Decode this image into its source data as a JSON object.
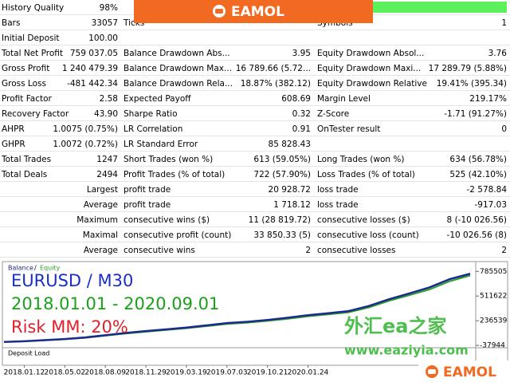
{
  "banner": {
    "brand": "EAMOL"
  },
  "report": {
    "rows": [
      [
        "History Quality",
        "98%",
        null,
        null,
        null,
        null
      ],
      [
        "Bars",
        "33057",
        "Ticks",
        null,
        "Symbols",
        "1"
      ],
      [
        "Initial Deposit",
        "100.00",
        null,
        null,
        null,
        null
      ],
      [
        "Total Net Profit",
        "759 037.05",
        "Balance Drawdown Abs...",
        "3.95",
        "Equity Drawdown Absol...",
        "3.76"
      ],
      [
        "Gross Profit",
        "1 240 479.39",
        "Balance Drawdown Max...",
        "16 789.66 (5.72...",
        "Equity Drawdown Maxi...",
        "17 289.79 (5.88%)"
      ],
      [
        "Gross Loss",
        "-481 442.34",
        "Balance Drawdown Rela...",
        "18.87% (382.12)",
        "Equity Drawdown Relative",
        "19.41% (395.34)"
      ],
      [
        "Profit Factor",
        "2.58",
        "Expected Payoff",
        "608.69",
        "Margin Level",
        "219.17%"
      ],
      [
        "Recovery Factor",
        "43.90",
        "Sharpe Ratio",
        "0.32",
        "Z-Score",
        "-1.71 (91.27%)"
      ],
      [
        "AHPR",
        "1.0075 (0.75%)",
        "LR Correlation",
        "0.91",
        "OnTester result",
        "0"
      ],
      [
        "GHPR",
        "1.0072 (0.72%)",
        "LR Standard Error",
        "85 828.43",
        null,
        null
      ],
      [
        "Total Trades",
        "1247",
        "Short Trades (won %)",
        "613 (59.05%)",
        "Long Trades (won %)",
        "634 (56.78%)"
      ],
      [
        "Total Deals",
        "2494",
        "Profit Trades (% of total)",
        "722 (57.90%)",
        "Loss Trades (% of total)",
        "525 (42.10%)"
      ],
      [
        null,
        "Largest",
        "profit trade",
        "20 928.72",
        "loss trade",
        "-2 578.84"
      ],
      [
        null,
        "Average",
        "profit trade",
        "1 718.12",
        "loss trade",
        "-917.03"
      ],
      [
        null,
        "Maximum",
        "consecutive wins ($)",
        "11 (28 819.72)",
        "consecutive losses ($)",
        "8 (-10 026.56)"
      ],
      [
        null,
        "Maximal",
        "consecutive profit (count)",
        "33 850.33 (5)",
        "consecutive loss (count)",
        "-10 026.56 (8)"
      ],
      [
        null,
        "Average",
        "consecutive wins",
        "2",
        "consecutive losses",
        "2"
      ]
    ]
  },
  "chart_data": {
    "type": "line",
    "legend_separator": "/",
    "title_lines": [
      {
        "text": "EURUSD / M30",
        "color": "#1a2fc8"
      },
      {
        "text": "2018.01.01 - 2020.09.01",
        "color": "#1aa01a"
      },
      {
        "text": "Risk MM: 20%",
        "color": "#e0202a"
      }
    ],
    "subpanel_title": "Deposit Load",
    "watermark": [
      "外汇ea之家",
      "www.eaziyia.com"
    ],
    "ylim": [
      -55000,
      850000
    ],
    "yticks": [
      785505,
      511622,
      236539,
      -37944
    ],
    "categories": [
      null,
      "2018.01.12",
      null,
      "2018.05.02",
      null,
      "2018.08.09",
      null,
      "2018.11.29",
      null,
      "2019.03.19",
      null,
      "2019.07.03",
      null,
      "2019.10.21",
      null,
      "2020.01.24",
      null,
      null,
      null,
      null,
      null,
      null,
      null,
      null
    ],
    "series": [
      {
        "name": "Equity",
        "color": "#2ca02c",
        "values": [
          100,
          7000,
          18000,
          30000,
          46000,
          70000,
          94000,
          114000,
          133000,
          152000,
          176000,
          200000,
          214000,
          234000,
          258000,
          285000,
          306000,
          330000,
          384000,
          458000,
          520000,
          585000,
          676000,
          740000
        ]
      },
      {
        "name": "Balance",
        "color": "#1c2a8c",
        "values": [
          100,
          8000,
          20000,
          33000,
          50000,
          75000,
          100000,
          121000,
          140000,
          160000,
          185000,
          210000,
          225000,
          245000,
          270000,
          298000,
          320000,
          343000,
          400000,
          476000,
          540000,
          608000,
          700000,
          759137
        ]
      }
    ]
  }
}
